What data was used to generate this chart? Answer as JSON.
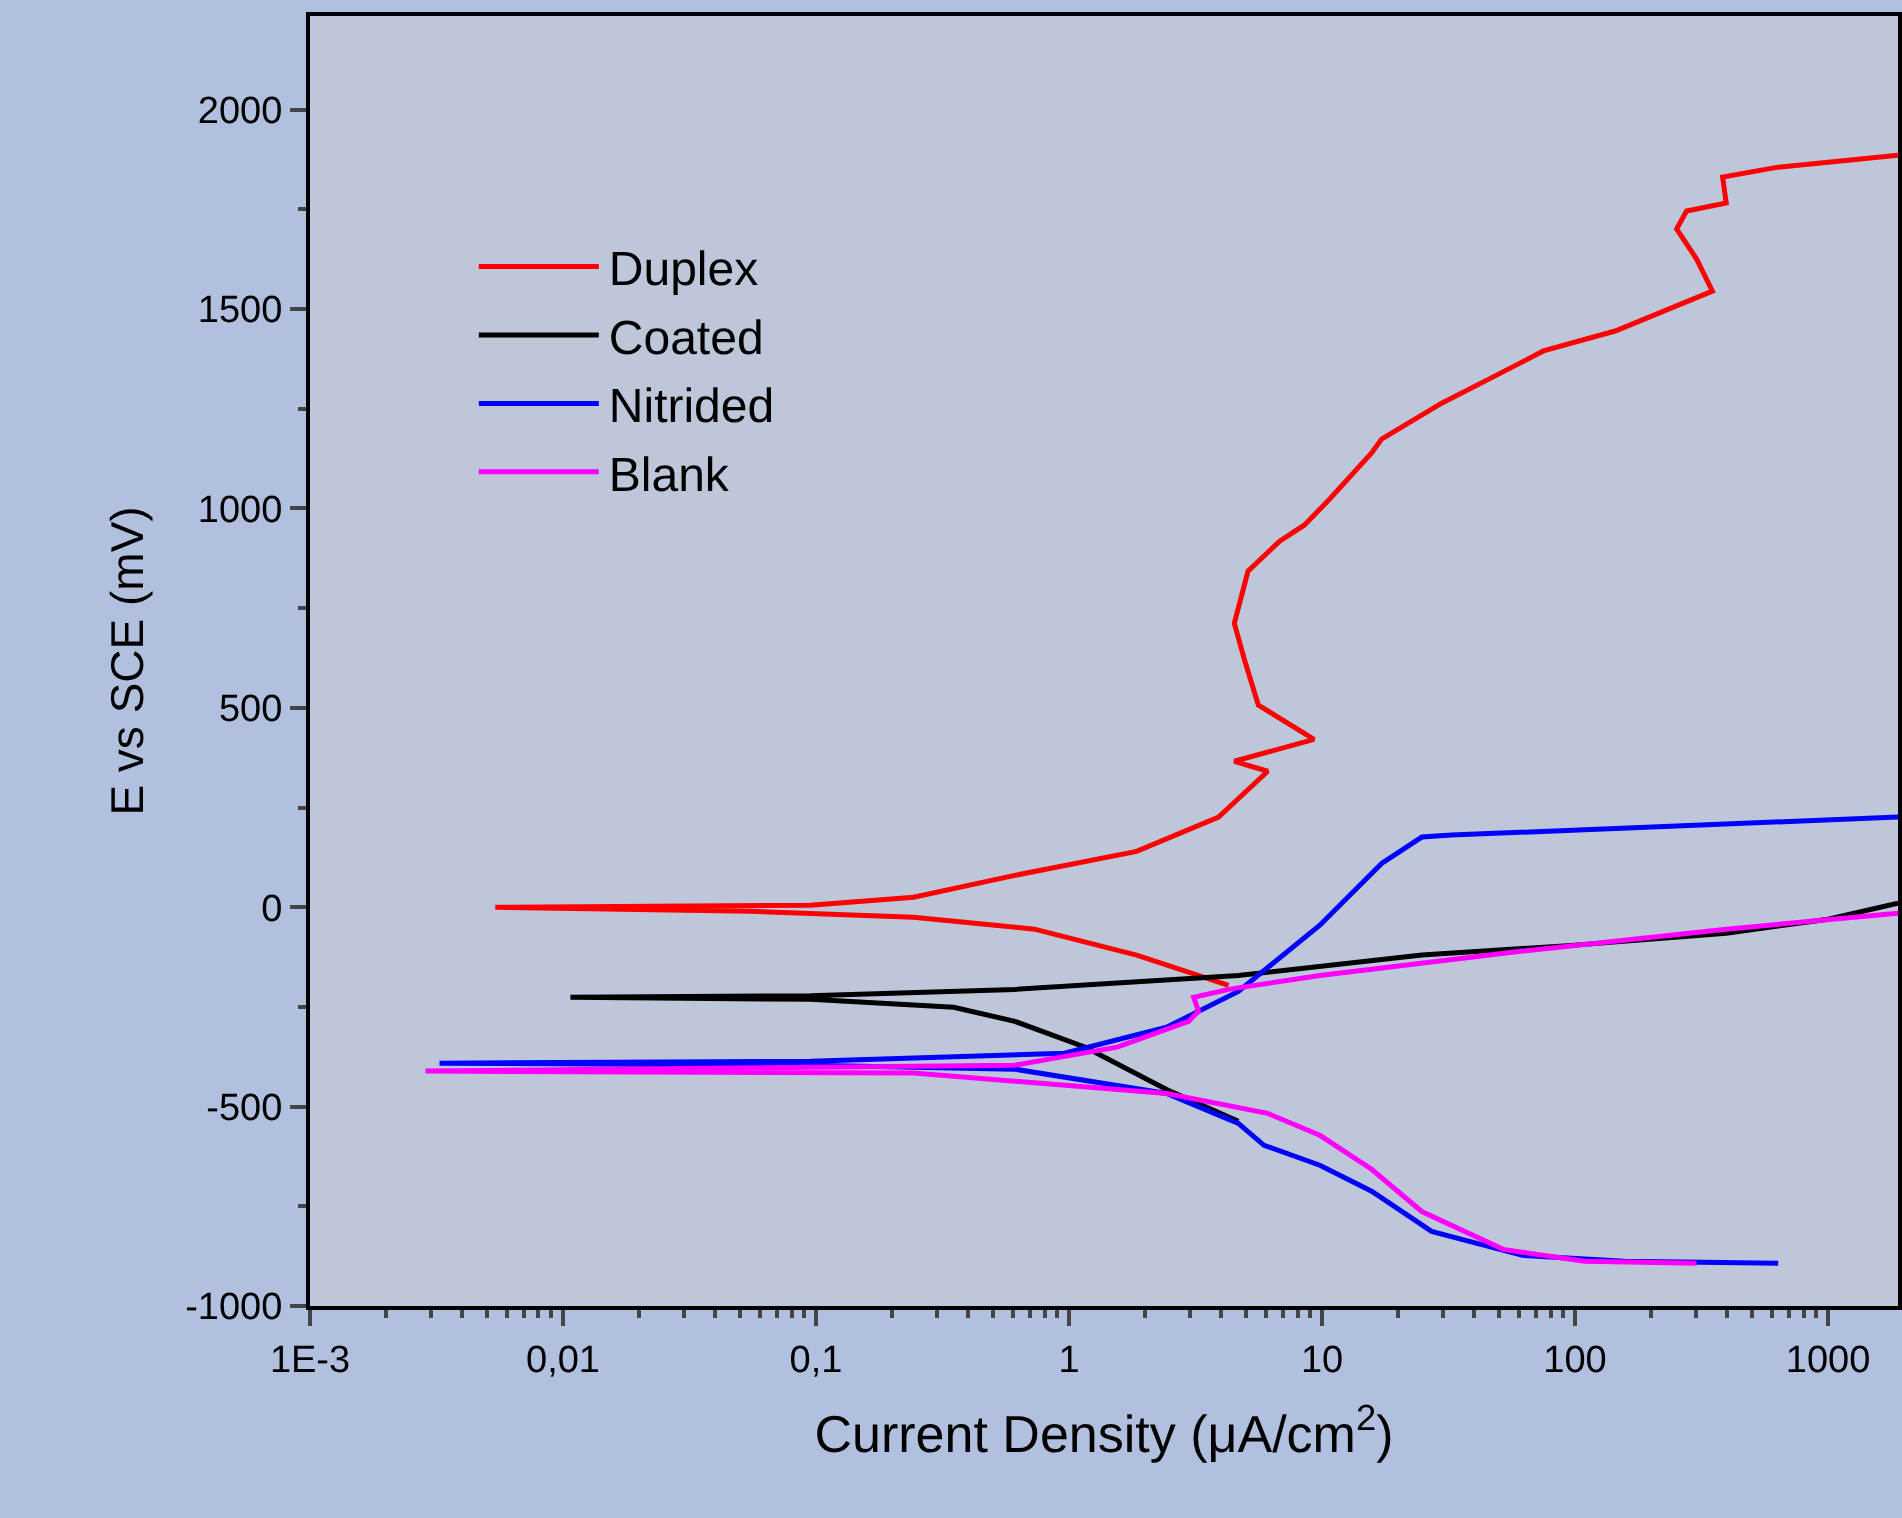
{
  "chart_data": {
    "type": "line",
    "xlabel": "Current Density (μA/cm$^{2}$)",
    "ylabel": "E vs SCE (mV)",
    "log": "x",
    "xlim": [
      0.001,
      1890
    ],
    "ylim": [
      -1000,
      2235
    ],
    "xticks": [
      {
        "value": 0.001,
        "label": "1E-3"
      },
      {
        "value": 0.01,
        "label": "0,01"
      },
      {
        "value": 0.1,
        "label": "0,1"
      },
      1,
      10,
      100,
      1000
    ],
    "yticks": [
      -1000,
      -500,
      0,
      500,
      1000,
      1500,
      2000
    ],
    "grid": false,
    "legend": "top left",
    "marker": "none",
    "line_style": "solid",
    "series": [
      {
        "name": "Duplex",
        "color": "#ff0000",
        "x": [
          4.27,
          1.85,
          0.73,
          0.243,
          0.055,
          0.0054,
          0.095,
          0.243,
          0.61,
          1.85,
          3.9,
          6.1,
          4.5,
          9.3,
          5.6,
          4.93,
          4.5,
          5.1,
          6.8,
          8.5,
          10.7,
          15.7,
          17.2,
          29.7,
          47.5,
          75,
          144,
          349,
          302,
          252,
          276,
          396,
          383,
          635,
          1890
        ],
        "values": [
          -196,
          -120,
          -55,
          -25,
          -10,
          0,
          5,
          25,
          80,
          140,
          226,
          341,
          366,
          421,
          507,
          622,
          712,
          843,
          918,
          958,
          1023,
          1139,
          1174,
          1264,
          1330,
          1395,
          1445,
          1545,
          1626,
          1701,
          1746,
          1766,
          1831,
          1856,
          1886
        ]
      },
      {
        "name": "Coated",
        "color": "#000000",
        "x": [
          4.67,
          2.43,
          1.16,
          0.61,
          0.35,
          0.095,
          0.0107,
          0.095,
          0.61,
          4.67,
          24.8,
          100,
          396,
          1000,
          1890
        ],
        "values": [
          -537,
          -457,
          -351,
          -286,
          -251,
          -231,
          -226,
          -222,
          -206,
          -171,
          -120,
          -95,
          -65,
          -30,
          10
        ]
      },
      {
        "name": "Nitrided",
        "color": "#0000ff",
        "x": [
          635,
          157,
          62,
          27.1,
          15.7,
          9.8,
          5.9,
          4.67,
          2.43,
          0.61,
          0.095,
          0.00325,
          0.095,
          0.96,
          2.43,
          4.67,
          9.8,
          17.2,
          24.8,
          32.5,
          1890
        ],
        "values": [
          -893,
          -888,
          -873,
          -813,
          -712,
          -647,
          -597,
          -542,
          -467,
          -406,
          -396,
          -391,
          -386,
          -366,
          -301,
          -211,
          -45,
          110,
          176,
          181,
          226
        ]
      },
      {
        "name": "Blank",
        "color": "#ff00ff",
        "x": [
          302,
          109,
          52,
          24.8,
          15.7,
          9.8,
          6.1,
          2.43,
          0.243,
          0.00286,
          0.61,
          1.55,
          2.97,
          3.25,
          3.11,
          4.27,
          9.8,
          62,
          396,
          1890
        ],
        "values": [
          -893,
          -888,
          -858,
          -763,
          -657,
          -572,
          -517,
          -467,
          -416,
          -411,
          -396,
          -351,
          -286,
          -261,
          -226,
          -206,
          -171,
          -110,
          -55,
          -15
        ]
      }
    ]
  }
}
